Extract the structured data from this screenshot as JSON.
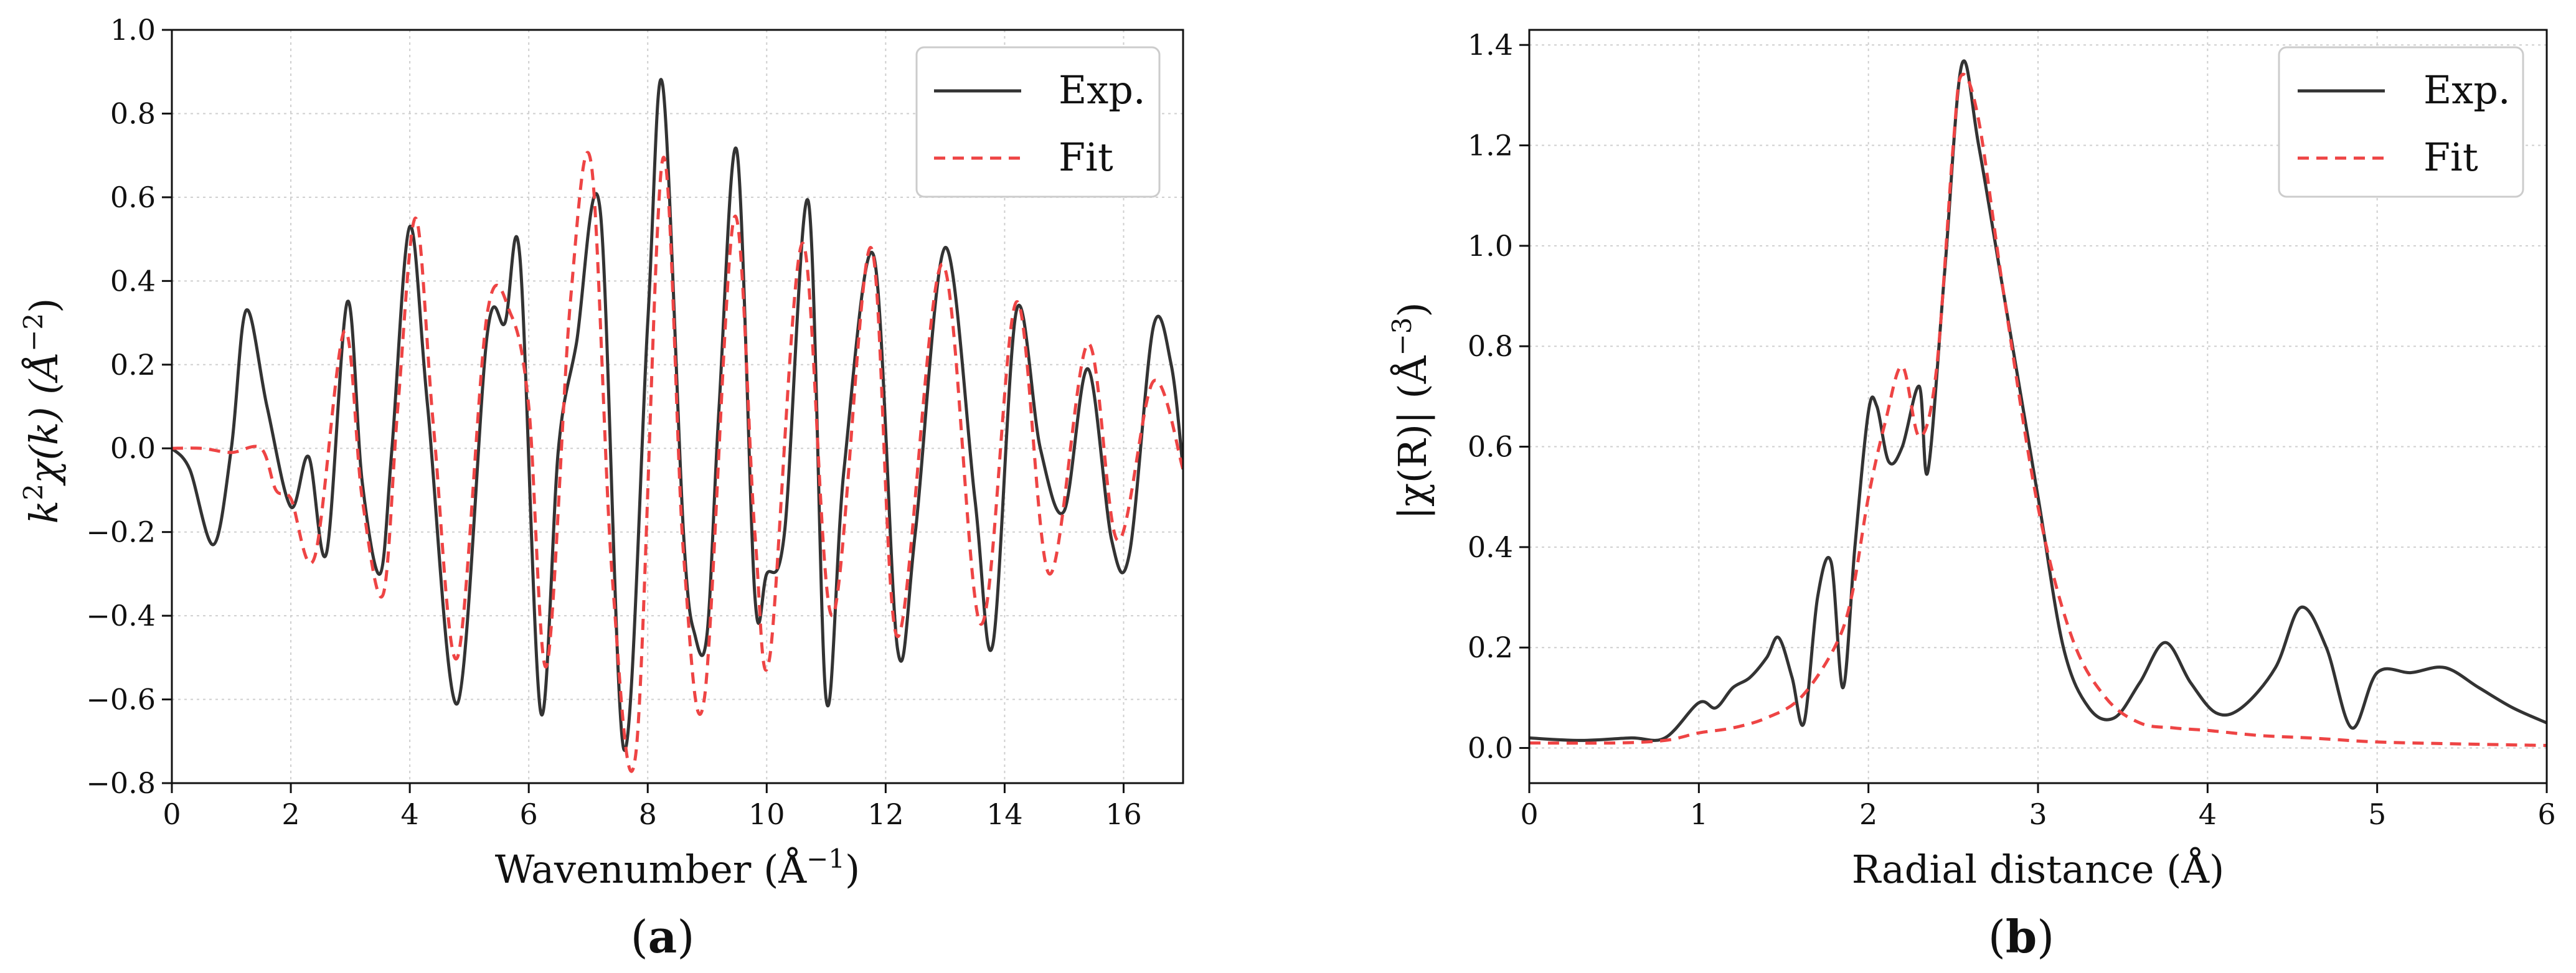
{
  "chart_data": [
    {
      "type": "line",
      "panel_label": "a",
      "xlabel": "Wavenumber (Å",
      "xlabel_sup": "−1",
      "xlabel_tail": ")",
      "ylabel_prefix": "k",
      "ylabel_sup1": "2",
      "ylabel_mid": "χ(k) (Å",
      "ylabel_sup2": "−2",
      "ylabel_tail": ")",
      "xlim": [
        0,
        17
      ],
      "ylim": [
        -0.8,
        1.0
      ],
      "xticks": [
        0,
        2,
        4,
        6,
        8,
        10,
        12,
        14,
        16
      ],
      "xtick_labels": [
        "0",
        "2",
        "4",
        "6",
        "8",
        "10",
        "12",
        "14",
        "16"
      ],
      "yticks": [
        -0.8,
        -0.6,
        -0.4,
        -0.2,
        0.0,
        0.2,
        0.4,
        0.6,
        0.8,
        1.0
      ],
      "ytick_labels": [
        "−0.8",
        "−0.6",
        "−0.4",
        "−0.2",
        "0.0",
        "0.2",
        "0.4",
        "0.6",
        "0.8",
        "1.0"
      ],
      "grid": true,
      "legend": "top-right",
      "series": [
        {
          "name": "Exp.",
          "color": "#333333",
          "style": "solid",
          "x": [
            0,
            0.3,
            0.7,
            1.0,
            1.25,
            1.6,
            2.0,
            2.3,
            2.6,
            2.95,
            3.2,
            3.5,
            3.7,
            4.0,
            4.3,
            4.8,
            5.3,
            5.6,
            5.85,
            6.2,
            6.5,
            6.8,
            7.2,
            7.6,
            8.0,
            8.25,
            8.6,
            8.8,
            9.0,
            9.2,
            9.5,
            9.8,
            10.0,
            10.3,
            10.7,
            11.0,
            11.3,
            11.8,
            12.2,
            12.5,
            13.0,
            13.5,
            13.8,
            14.2,
            14.6,
            15.0,
            15.4,
            15.8,
            16.1,
            16.5,
            16.8,
            17.0
          ],
          "y": [
            0.0,
            -0.05,
            -0.23,
            0.0,
            0.33,
            0.1,
            -0.14,
            -0.02,
            -0.25,
            0.35,
            -0.08,
            -0.3,
            0.0,
            0.53,
            0.1,
            -0.61,
            0.27,
            0.3,
            0.46,
            -0.63,
            0.0,
            0.25,
            0.57,
            -0.72,
            0.3,
            0.87,
            -0.2,
            -0.45,
            -0.44,
            0.1,
            0.71,
            -0.35,
            -0.3,
            -0.2,
            0.59,
            -0.6,
            -0.05,
            0.46,
            -0.48,
            -0.2,
            0.48,
            -0.12,
            -0.47,
            0.33,
            0.0,
            -0.15,
            0.19,
            -0.22,
            -0.25,
            0.29,
            0.2,
            -0.05
          ]
        },
        {
          "name": "Fit",
          "color": "#ee4444",
          "style": "dashed",
          "x": [
            0,
            0.5,
            1.0,
            1.5,
            1.75,
            2.0,
            2.4,
            2.9,
            3.2,
            3.55,
            3.8,
            4.1,
            4.4,
            4.8,
            5.3,
            5.7,
            6.0,
            6.3,
            6.7,
            7.05,
            7.4,
            7.8,
            8.25,
            8.6,
            8.95,
            9.45,
            9.8,
            10.05,
            10.6,
            11.1,
            11.75,
            12.2,
            12.95,
            13.6,
            14.2,
            14.75,
            15.4,
            15.9,
            16.5,
            17.0
          ],
          "y": [
            0.0,
            0.0,
            -0.01,
            0.0,
            -0.1,
            -0.12,
            -0.26,
            0.28,
            -0.12,
            -0.35,
            0.1,
            0.55,
            0.05,
            -0.5,
            0.32,
            0.32,
            0.1,
            -0.52,
            0.35,
            0.68,
            -0.3,
            -0.73,
            0.69,
            -0.25,
            -0.6,
            0.55,
            -0.2,
            -0.5,
            0.49,
            -0.4,
            0.48,
            -0.45,
            0.44,
            -0.42,
            0.35,
            -0.3,
            0.25,
            -0.22,
            0.16,
            -0.05
          ]
        }
      ]
    },
    {
      "type": "line",
      "panel_label": "b",
      "xlabel": "Radial distance (Å)",
      "ylabel_prefix": "|χ(R)| (Å",
      "ylabel_sup": "−3",
      "ylabel_tail": ")",
      "xlim": [
        0,
        6
      ],
      "ylim": [
        -0.07,
        1.43
      ],
      "xticks": [
        0,
        1,
        2,
        3,
        4,
        5,
        6
      ],
      "xtick_labels": [
        "0",
        "1",
        "2",
        "3",
        "4",
        "5",
        "6"
      ],
      "yticks": [
        0.0,
        0.2,
        0.4,
        0.6,
        0.8,
        1.0,
        1.2,
        1.4
      ],
      "ytick_labels": [
        "0.0",
        "0.2",
        "0.4",
        "0.6",
        "0.8",
        "1.0",
        "1.2",
        "1.4"
      ],
      "grid": true,
      "legend": "top-right",
      "series": [
        {
          "name": "Exp.",
          "color": "#333333",
          "style": "solid",
          "x": [
            0,
            0.3,
            0.6,
            0.8,
            1.0,
            1.1,
            1.2,
            1.3,
            1.4,
            1.47,
            1.55,
            1.62,
            1.7,
            1.78,
            1.85,
            1.92,
            2.0,
            2.05,
            2.12,
            2.2,
            2.3,
            2.35,
            2.45,
            2.55,
            2.65,
            2.8,
            3.0,
            3.15,
            3.3,
            3.45,
            3.6,
            3.75,
            3.9,
            4.05,
            4.2,
            4.4,
            4.55,
            4.7,
            4.85,
            5.0,
            5.2,
            5.4,
            5.6,
            5.8,
            6.0
          ],
          "y": [
            0.02,
            0.015,
            0.02,
            0.02,
            0.09,
            0.08,
            0.12,
            0.14,
            0.18,
            0.22,
            0.14,
            0.05,
            0.3,
            0.37,
            0.12,
            0.4,
            0.67,
            0.68,
            0.57,
            0.6,
            0.72,
            0.55,
            0.95,
            1.36,
            1.2,
            0.9,
            0.5,
            0.2,
            0.08,
            0.06,
            0.13,
            0.21,
            0.13,
            0.07,
            0.08,
            0.16,
            0.28,
            0.2,
            0.04,
            0.15,
            0.15,
            0.16,
            0.12,
            0.08,
            0.05
          ]
        },
        {
          "name": "Fit",
          "color": "#ee4444",
          "style": "dashed",
          "x": [
            0,
            0.5,
            0.8,
            1.0,
            1.2,
            1.4,
            1.6,
            1.8,
            1.9,
            2.0,
            2.1,
            2.2,
            2.3,
            2.4,
            2.5,
            2.55,
            2.65,
            2.8,
            3.0,
            3.2,
            3.4,
            3.6,
            3.8,
            4.0,
            4.3,
            4.6,
            5.0,
            5.5,
            6.0
          ],
          "y": [
            0.01,
            0.01,
            0.015,
            0.03,
            0.04,
            0.06,
            0.1,
            0.2,
            0.3,
            0.5,
            0.65,
            0.76,
            0.62,
            0.75,
            1.2,
            1.34,
            1.25,
            0.9,
            0.48,
            0.22,
            0.1,
            0.05,
            0.04,
            0.035,
            0.025,
            0.02,
            0.012,
            0.008,
            0.005
          ]
        }
      ]
    }
  ]
}
